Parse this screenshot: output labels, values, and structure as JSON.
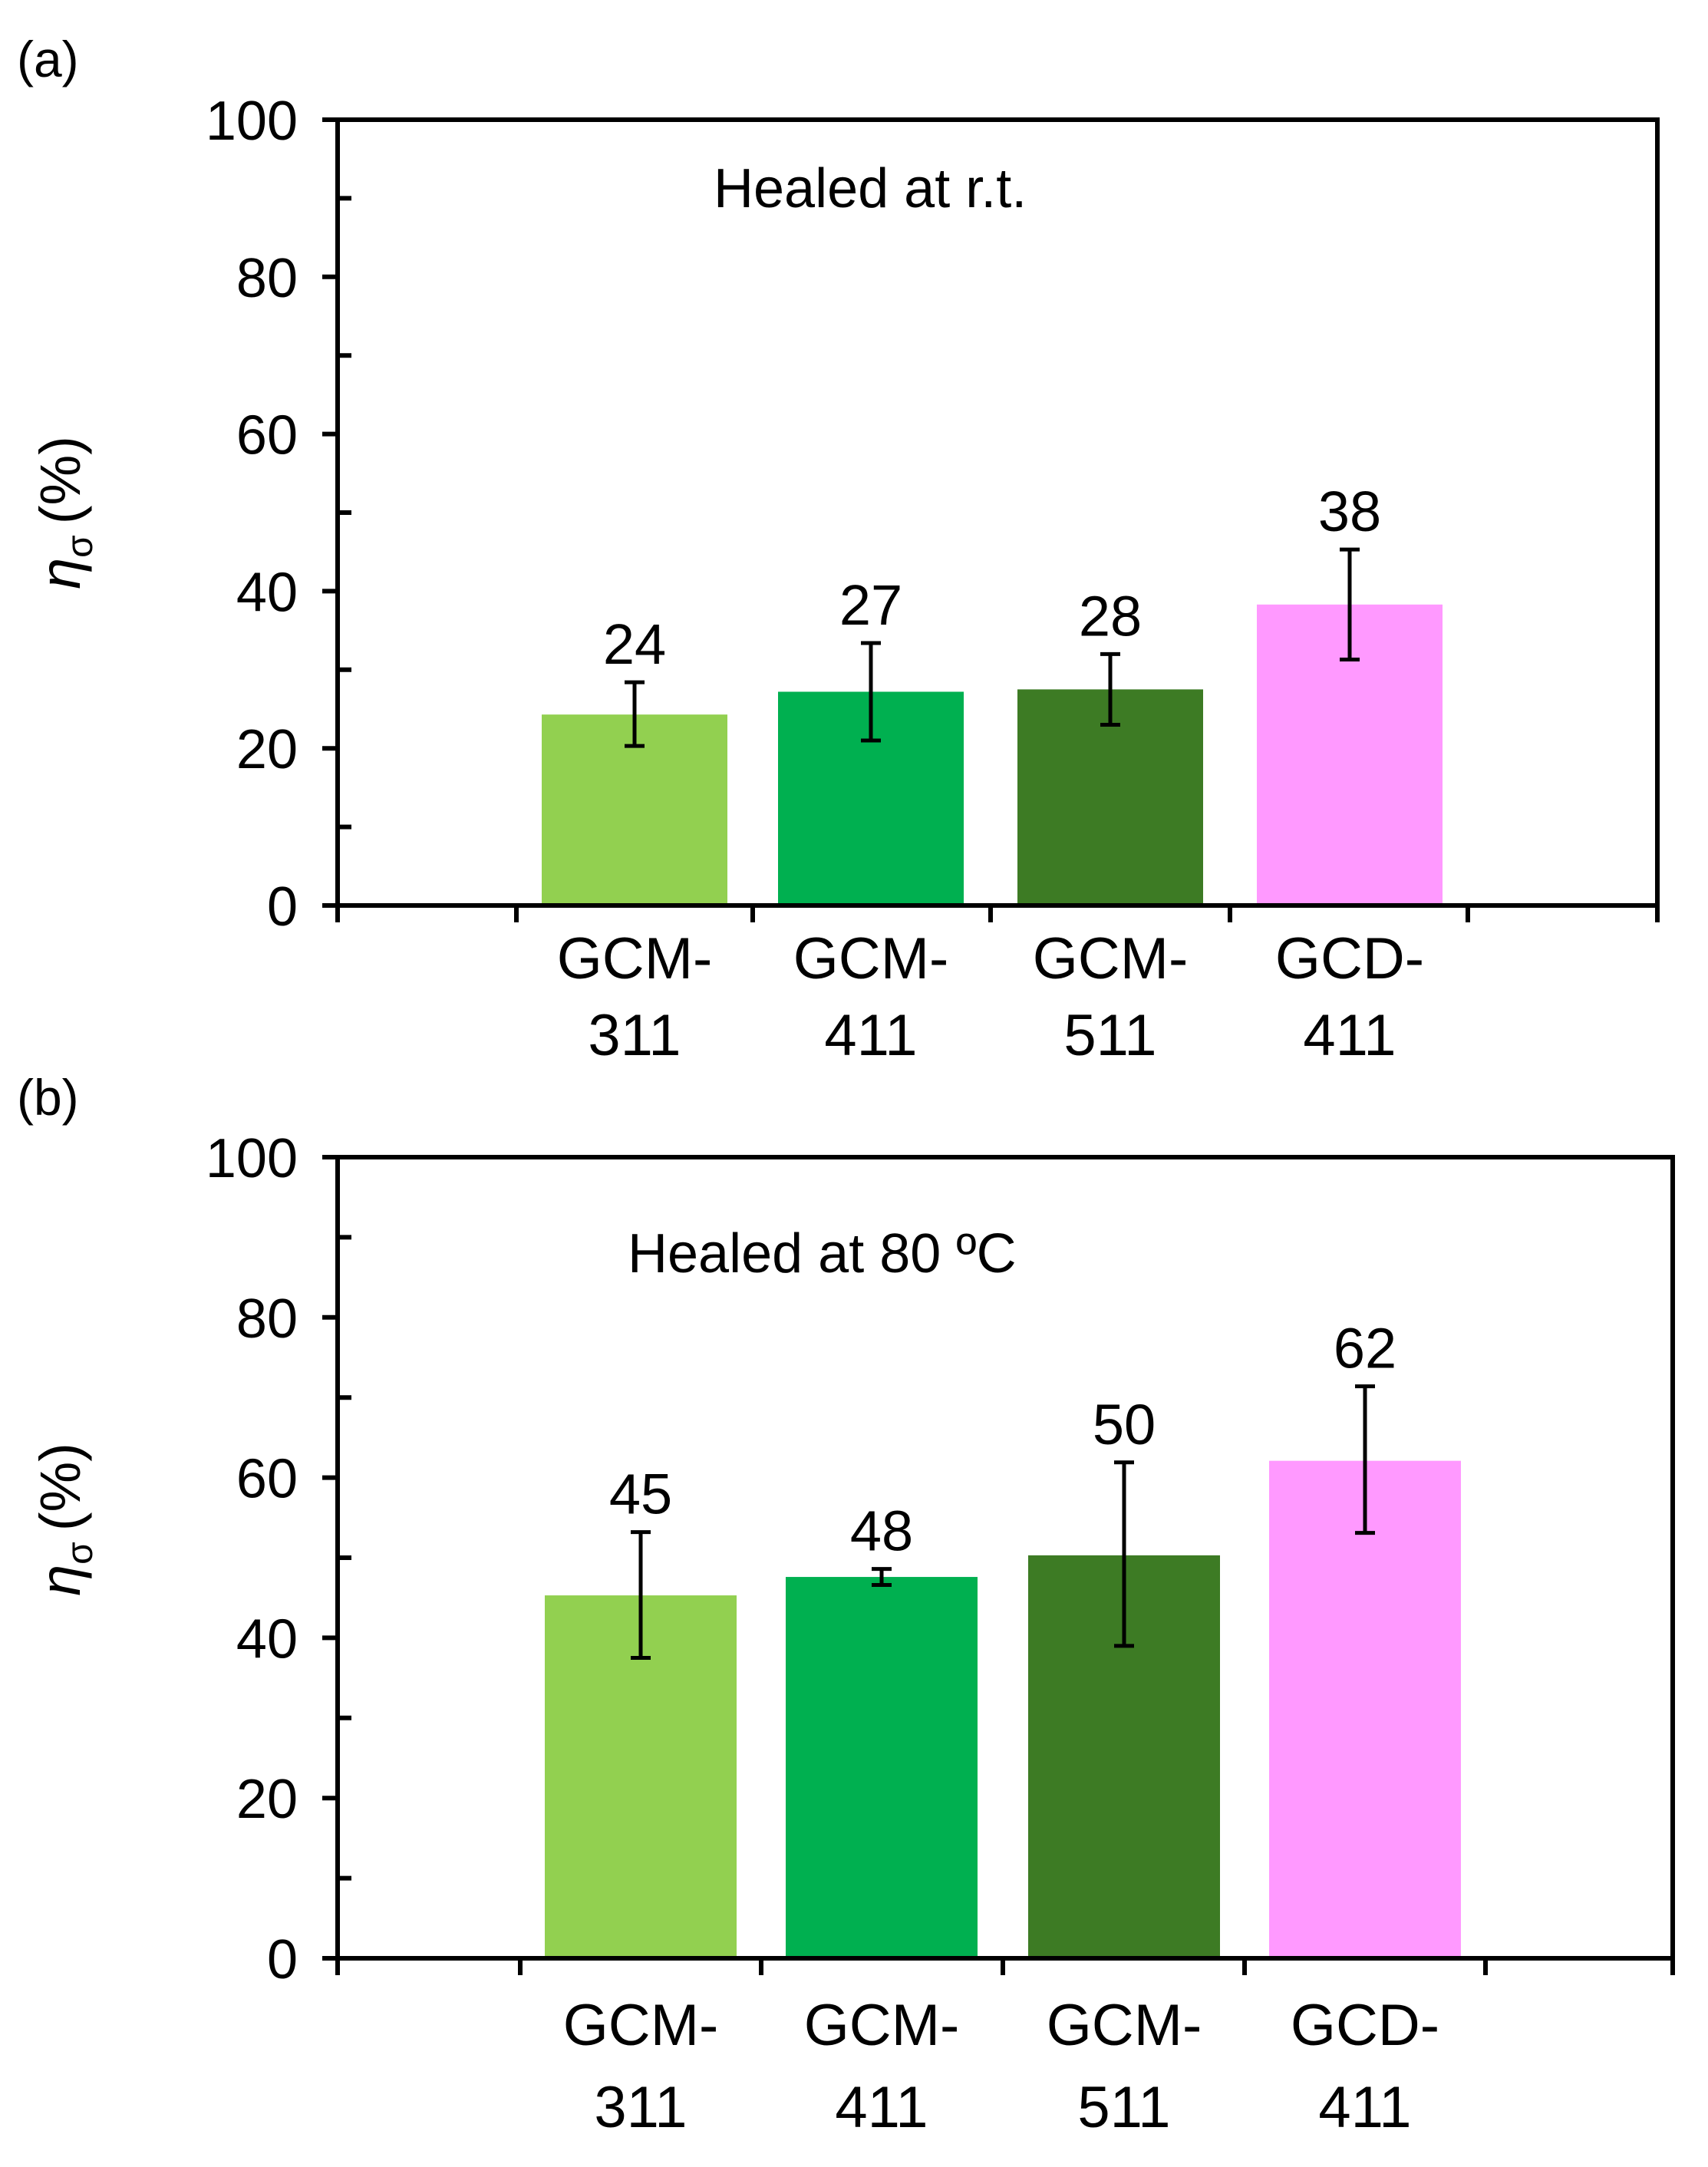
{
  "chart_data": [
    {
      "type": "bar",
      "panel_label": "(a)",
      "annotation": "Healed at r.t.",
      "ylabel": "η",
      "ylabel_subscript": "σ",
      "ylabel_unit": "(%)",
      "xlabel": "",
      "ylim": [
        0,
        100
      ],
      "yticks": [
        "0",
        "20",
        "40",
        "60",
        "80",
        "100"
      ],
      "categories": [
        {
          "line1": "GCM-",
          "line2": "311"
        },
        {
          "line1": "GCM-",
          "line2": "411"
        },
        {
          "line1": "GCM-",
          "line2": "511"
        },
        {
          "line1": "GCD-",
          "line2": "411"
        }
      ],
      "values": [
        24.3,
        27.2,
        27.5,
        38.3
      ],
      "value_labels": [
        "24",
        "27",
        "28",
        "38"
      ],
      "error_low": [
        20.3,
        21.0,
        23.0,
        31.3
      ],
      "error_high": [
        28.4,
        33.4,
        32.0,
        45.3
      ],
      "colors": [
        "#92d050",
        "#00b050",
        "#3d7b24",
        "#ff99ff"
      ]
    },
    {
      "type": "bar",
      "panel_label": "(b)",
      "annotation": "Healed at 80 ºC",
      "ylabel": "η",
      "ylabel_subscript": "σ",
      "ylabel_unit": "(%)",
      "xlabel": "",
      "ylim": [
        0,
        100
      ],
      "yticks": [
        "0",
        "20",
        "40",
        "60",
        "80",
        "100"
      ],
      "categories": [
        {
          "line1": "GCM-",
          "line2": "311"
        },
        {
          "line1": "GCM-",
          "line2": "411"
        },
        {
          "line1": "GCM-",
          "line2": "511"
        },
        {
          "line1": "GCD-",
          "line2": "411"
        }
      ],
      "values": [
        45.3,
        47.6,
        50.3,
        62.1
      ],
      "value_labels": [
        "45",
        "48",
        "50",
        "62"
      ],
      "error_low": [
        37.5,
        46.6,
        39.0,
        53.1
      ],
      "error_high": [
        53.2,
        48.6,
        61.9,
        71.4
      ],
      "colors": [
        "#92d050",
        "#00b050",
        "#3d7b24",
        "#ff99ff"
      ]
    }
  ]
}
